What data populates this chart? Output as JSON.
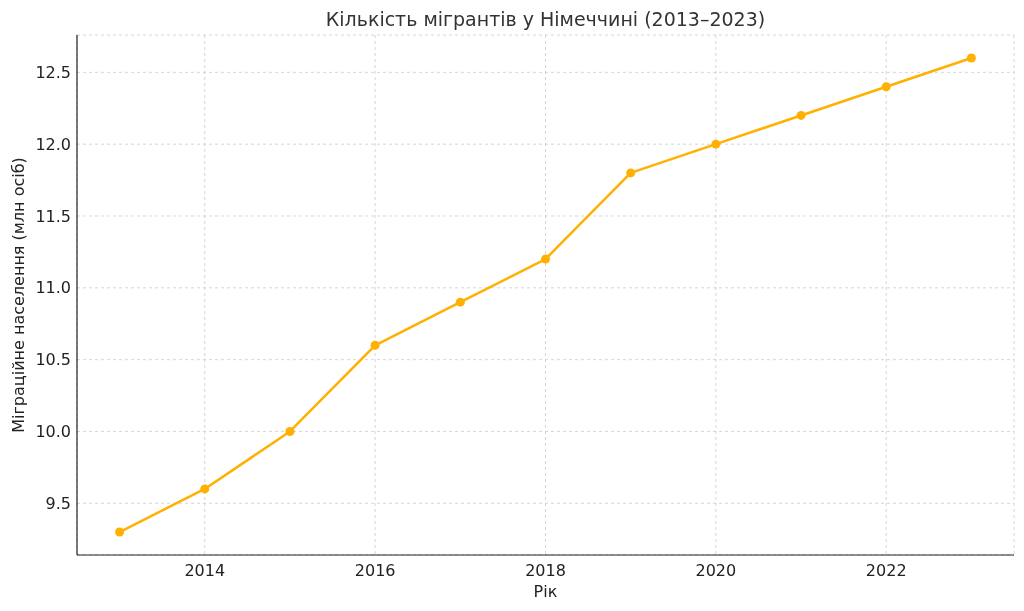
{
  "chart_data": {
    "type": "line",
    "title": "Кількість мігрантів у Німеччині (2013–2023)",
    "xlabel": "Рік",
    "ylabel": "Міграційне населення (млн осіб)",
    "x": [
      2013,
      2014,
      2015,
      2016,
      2017,
      2018,
      2019,
      2020,
      2021,
      2022,
      2023
    ],
    "values": [
      9.3,
      9.6,
      10.0,
      10.6,
      10.9,
      11.2,
      11.8,
      12.0,
      12.2,
      12.4,
      12.6
    ],
    "color": "#ffb000",
    "xlim": [
      2012.5,
      2023.5
    ],
    "xticks": [
      2014,
      2016,
      2018,
      2020,
      2022
    ],
    "ylim": [
      9.14,
      12.76
    ],
    "yticks": [
      9.5,
      {
        "value": 10,
        "label": "10.0"
      },
      10.5,
      {
        "value": 11,
        "label": "11.0"
      },
      11.5,
      {
        "value": 12,
        "label": "12.0"
      },
      12.5
    ],
    "grid": true,
    "marker": "circle",
    "line_style": "solid"
  }
}
